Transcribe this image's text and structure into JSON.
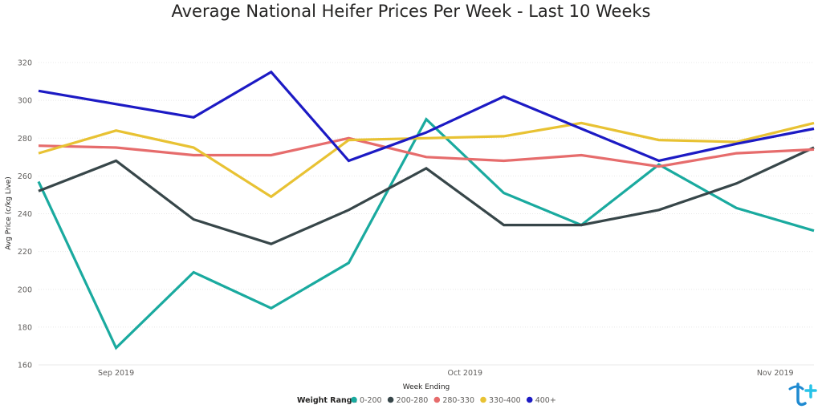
{
  "chart_data": {
    "type": "line",
    "title": "Average National Heifer Prices Per Week - Last 10 Weeks",
    "xlabel": "Week Ending",
    "ylabel": "Avg Price (c/kg Live)",
    "ylim": [
      160,
      320
    ],
    "yticks": [
      160,
      180,
      200,
      220,
      240,
      260,
      280,
      300,
      320
    ],
    "x_tick_labels": [
      {
        "label": "Sep 2019",
        "at_week": 1
      },
      {
        "label": "Oct 2019",
        "at_week": 5.5
      },
      {
        "label": "Nov 2019",
        "at_week": 9.5
      }
    ],
    "grid": "horizontal",
    "legend_placement": "bottom-center",
    "legend_title": "Weight Range",
    "series": [
      {
        "name": "0-200",
        "color": "#1aaa9f",
        "values": [
          257,
          169,
          209,
          190,
          214,
          290,
          251,
          234,
          266,
          243,
          231
        ]
      },
      {
        "name": "200-280",
        "color": "#374649",
        "values": [
          252,
          268,
          237,
          224,
          242,
          264,
          234,
          234,
          242,
          256,
          275
        ]
      },
      {
        "name": "280-330",
        "color": "#e66c6c",
        "values": [
          276,
          275,
          271,
          271,
          280,
          270,
          268,
          271,
          265,
          272,
          274
        ]
      },
      {
        "name": "330-400",
        "color": "#e8c233",
        "values": [
          272,
          284,
          275,
          249,
          279,
          280,
          281,
          288,
          279,
          278,
          288
        ]
      },
      {
        "name": "400+",
        "color": "#1c1ac4",
        "values": [
          305,
          298,
          291,
          315,
          268,
          283,
          302,
          285,
          268,
          277,
          285
        ]
      }
    ]
  }
}
